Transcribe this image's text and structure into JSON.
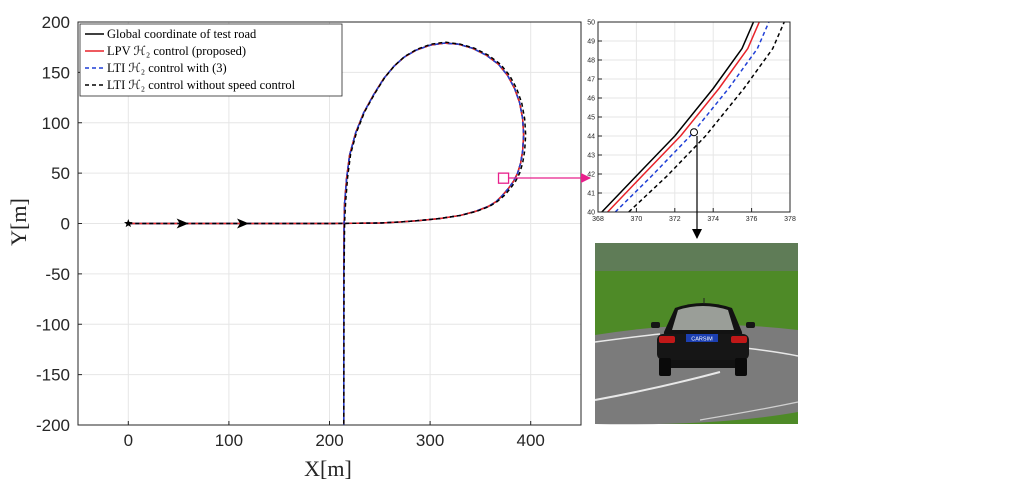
{
  "chart_data": [
    {
      "type": "line",
      "title": "",
      "xlabel": "X[m]",
      "ylabel": "Y[m]",
      "xlim": [
        -50,
        450
      ],
      "ylim": [
        -200,
        200
      ],
      "xticks": [
        "0",
        "100",
        "200",
        "300",
        "400"
      ],
      "yticks": [
        "200",
        "150",
        "100",
        "50",
        "0",
        "-50",
        "-100",
        "-150",
        "-200"
      ],
      "grid": true,
      "legend_position": "top-left",
      "start_marker": {
        "x": 0,
        "y": 0,
        "symbol": "star"
      },
      "direction_arrows": [
        {
          "x": 60,
          "y": 0
        },
        {
          "x": 120,
          "y": 0
        }
      ],
      "zoom_box": {
        "x": [
          368,
          378
        ],
        "y": [
          40,
          50
        ]
      },
      "series": [
        {
          "name": "Global coordinate of test road",
          "color": "#000000",
          "style": "solid",
          "x": [
            0,
            100,
            200,
            250,
            270,
            290,
            310,
            330,
            345,
            358,
            366,
            372,
            378,
            383,
            387,
            390,
            392,
            393,
            392,
            389,
            384,
            377,
            368,
            356,
            342,
            328,
            314,
            300,
            286,
            274,
            264,
            254,
            244,
            234,
            226,
            220,
            217,
            215,
            214.5,
            214.2,
            214.2,
            214.2
          ],
          "y": [
            0,
            0,
            0,
            0.5,
            1.5,
            3,
            5,
            8,
            12,
            17,
            22,
            28,
            35,
            42,
            50,
            60,
            72,
            88,
            104,
            120,
            134,
            147,
            158,
            167,
            174,
            178,
            179,
            177,
            172,
            165,
            156,
            144,
            128,
            110,
            90,
            68,
            45,
            20,
            0,
            -50,
            -150,
            -200
          ]
        },
        {
          "name": "LPV ℋ₂ control (proposed)",
          "color": "#e8242a",
          "style": "solid",
          "x": [
            0,
            100,
            200,
            250,
            270,
            290,
            310,
            330,
            345,
            358,
            366,
            372,
            378,
            383,
            387,
            390,
            392,
            393,
            392,
            389,
            384,
            377,
            368,
            356,
            342,
            328,
            314,
            300,
            286,
            274,
            264,
            254,
            244,
            234,
            226,
            220,
            217,
            215,
            214.5,
            214.2,
            214.2,
            214.2
          ],
          "y": [
            0,
            0,
            0,
            0.5,
            1.5,
            3,
            5,
            8,
            12,
            17,
            22,
            28,
            35,
            42,
            50,
            60,
            72,
            88,
            104,
            120,
            134,
            147,
            158,
            167,
            174,
            178,
            179,
            177,
            172,
            165,
            156,
            144,
            128,
            110,
            90,
            68,
            45,
            20,
            0,
            -50,
            -150,
            -200
          ]
        },
        {
          "name": "LTI ℋ₂ control with (3)",
          "color": "#1f3fd6",
          "style": "dashed",
          "x": [
            0,
            100,
            200,
            250,
            270,
            290,
            310,
            330,
            345,
            358,
            366,
            372,
            378,
            383,
            387,
            390,
            392,
            393,
            392,
            389,
            384,
            377,
            368,
            356,
            342,
            328,
            314,
            300,
            286,
            274,
            264,
            254,
            244,
            234,
            226,
            220,
            217,
            215,
            214.5,
            214.2,
            214.2,
            214.2
          ],
          "y": [
            0,
            0,
            0,
            0.5,
            1.5,
            3,
            5,
            8,
            12,
            17,
            22,
            28,
            35,
            42,
            50,
            60,
            72,
            88,
            104,
            120,
            134,
            147,
            158,
            167,
            174,
            178,
            179,
            177,
            172,
            165,
            156,
            144,
            128,
            110,
            90,
            68,
            45,
            20,
            0,
            -50,
            -150,
            -200
          ]
        },
        {
          "name": "LTI ℋ₂ control without speed control",
          "color": "#000000",
          "style": "dashed",
          "x": [
            0,
            100,
            200,
            250,
            270,
            290,
            310,
            330,
            346,
            359,
            367,
            374,
            380,
            385,
            389,
            392,
            394,
            395,
            394,
            391,
            386,
            379,
            370,
            358,
            344,
            330,
            315,
            301,
            287,
            275,
            265,
            255,
            245,
            235,
            227,
            221,
            218,
            216,
            215,
            214.5,
            214.3,
            214.2
          ],
          "y": [
            0,
            0,
            0,
            0.5,
            1.5,
            3,
            5,
            8,
            12,
            17,
            22,
            28,
            35,
            42,
            50,
            60,
            72,
            88,
            104,
            120,
            134,
            147,
            158,
            167,
            174,
            178,
            180,
            178,
            173,
            166,
            157,
            145,
            129,
            111,
            91,
            69,
            46,
            21,
            0,
            -50,
            -150,
            -200
          ]
        }
      ]
    },
    {
      "type": "line",
      "title": "",
      "xlabel": "",
      "ylabel": "",
      "xlim": [
        368,
        378
      ],
      "ylim": [
        40,
        50
      ],
      "xticks": [
        "368",
        "370",
        "372",
        "374",
        "376",
        "378"
      ],
      "yticks": [
        "50",
        "49",
        "48",
        "47",
        "46",
        "45",
        "44",
        "43",
        "42",
        "41",
        "40"
      ],
      "grid": true,
      "marker": {
        "x": 373,
        "y": 44.2,
        "symbol": "circle"
      },
      "series": [
        {
          "name": "Global coordinate of test road",
          "color": "#000000",
          "style": "solid",
          "x": [
            368.2,
            370,
            372,
            374,
            375.5,
            376.1
          ],
          "y": [
            40,
            41.9,
            44.0,
            46.5,
            48.6,
            50
          ]
        },
        {
          "name": "LPV ℋ₂ control (proposed)",
          "color": "#e8242a",
          "style": "solid",
          "x": [
            368.5,
            370.3,
            372.3,
            374.3,
            375.8,
            376.4
          ],
          "y": [
            40,
            41.9,
            44.0,
            46.5,
            48.6,
            50
          ]
        },
        {
          "name": "LTI ℋ₂ control with (3)",
          "color": "#1f3fd6",
          "style": "dashed",
          "x": [
            368.9,
            370.8,
            372.8,
            374.8,
            376.3,
            376.9
          ],
          "y": [
            40,
            41.9,
            44.0,
            46.5,
            48.6,
            50
          ]
        },
        {
          "name": "LTI ℋ₂ control without speed control",
          "color": "#000000",
          "style": "dashed",
          "x": [
            369.6,
            371.6,
            373.6,
            375.6,
            377.1,
            377.7
          ],
          "y": [
            40,
            41.9,
            44.0,
            46.5,
            48.6,
            50
          ]
        }
      ]
    }
  ],
  "scene": {
    "sky_color": "#5e7b54",
    "grass_color": "#4f8c26",
    "road_color": "#7a7a7a",
    "car_color": "#121212",
    "plate_text": "CARSIM"
  },
  "callout_color": "#e8208c"
}
